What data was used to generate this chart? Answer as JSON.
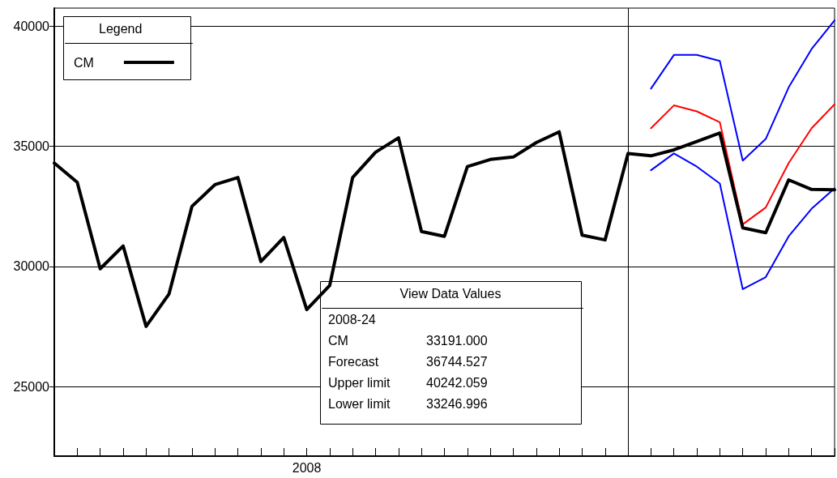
{
  "chart_data": {
    "type": "line",
    "legend_title": "Legend",
    "legend": "top left",
    "grid": "y",
    "marker": "none",
    "line_style": "solid",
    "categories": [
      null,
      null,
      null,
      null,
      null,
      null,
      null,
      null,
      null,
      null,
      null,
      "2008",
      null,
      null,
      null,
      null,
      null,
      null,
      null,
      null,
      null,
      null,
      null,
      null,
      null,
      null,
      null,
      null,
      null,
      null,
      null,
      null,
      null,
      null,
      null
    ],
    "series": [
      {
        "name": "CM",
        "color": "#000000",
        "values": [
          34300,
          33500,
          29900,
          30850,
          27500,
          28850,
          32500,
          33400,
          33700,
          30200,
          31200,
          28200,
          29200,
          33700,
          34750,
          35350,
          31450,
          31250,
          34150,
          34450,
          34550,
          35150,
          35600,
          31300,
          31100,
          34700,
          34600,
          34850,
          35200,
          35550,
          31600,
          31400,
          33600,
          33200,
          33191
        ]
      },
      {
        "color": "#ff0000",
        "values": [
          null,
          null,
          null,
          null,
          null,
          null,
          null,
          null,
          null,
          null,
          null,
          null,
          null,
          null,
          null,
          null,
          null,
          null,
          null,
          null,
          null,
          null,
          null,
          null,
          null,
          null,
          35750,
          36700,
          36450,
          36000,
          31750,
          32450,
          34300,
          35750,
          36744.527
        ]
      },
      {
        "color": "#0000ff",
        "values": [
          null,
          null,
          null,
          null,
          null,
          null,
          null,
          null,
          null,
          null,
          null,
          null,
          null,
          null,
          null,
          null,
          null,
          null,
          null,
          null,
          null,
          null,
          null,
          null,
          null,
          null,
          37400,
          38800,
          38800,
          38550,
          34400,
          35300,
          37450,
          39050,
          40242.059
        ]
      },
      {
        "color": "#0000ff",
        "values": [
          null,
          null,
          null,
          null,
          null,
          null,
          null,
          null,
          null,
          null,
          null,
          null,
          null,
          null,
          null,
          null,
          null,
          null,
          null,
          null,
          null,
          null,
          null,
          null,
          null,
          null,
          34000,
          34700,
          34150,
          33450,
          29050,
          29550,
          31250,
          32400,
          33246.996
        ]
      }
    ],
    "ylim": [
      22100,
      40750
    ],
    "yticks": [
      25000,
      30000,
      35000,
      40000
    ],
    "annotations": [
      "View Data Values",
      "2008-24",
      "CM",
      "33191.000",
      "Forecast",
      "36744.527",
      "Upper limit",
      "40242.059",
      "Lower limit",
      "33246.996"
    ]
  }
}
